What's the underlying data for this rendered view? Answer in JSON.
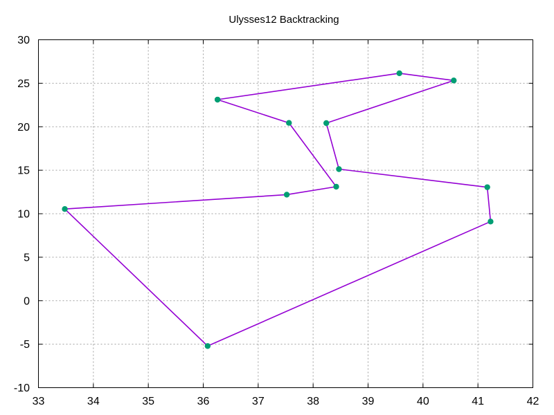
{
  "chart_data": {
    "type": "line",
    "title": "Ulysses12 Backtracking",
    "xlabel": "",
    "ylabel": "",
    "xlim": [
      33,
      42
    ],
    "ylim": [
      -10,
      30
    ],
    "xticks": [
      33,
      34,
      35,
      36,
      37,
      38,
      39,
      40,
      41,
      42
    ],
    "yticks": [
      -10,
      -5,
      0,
      5,
      10,
      15,
      20,
      25,
      30
    ],
    "grid": true,
    "legend": "none",
    "series": [
      {
        "line_color": "#9400d3",
        "marker_color": "#009e73",
        "points": [
          {
            "x": 36.26,
            "y": 23.12
          },
          {
            "x": 37.56,
            "y": 20.44
          },
          {
            "x": 38.42,
            "y": 13.11
          },
          {
            "x": 37.52,
            "y": 12.19
          },
          {
            "x": 33.48,
            "y": 10.54
          },
          {
            "x": 36.08,
            "y": -5.21
          },
          {
            "x": 41.23,
            "y": 9.1
          },
          {
            "x": 41.17,
            "y": 13.05
          },
          {
            "x": 38.47,
            "y": 15.13
          },
          {
            "x": 38.24,
            "y": 20.42
          },
          {
            "x": 40.56,
            "y": 25.32
          },
          {
            "x": 39.57,
            "y": 26.15
          },
          {
            "x": 36.26,
            "y": 23.12
          }
        ]
      }
    ]
  }
}
